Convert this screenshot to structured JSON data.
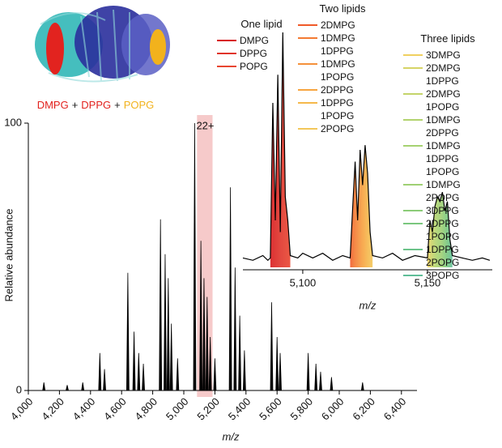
{
  "chart_data": [
    {
      "type": "spectrum",
      "caption": [
        {
          "text": "DMPG",
          "color": "#e2231f"
        },
        {
          "text": "+",
          "color": "#222222"
        },
        {
          "text": "DPPG",
          "color": "#e2231f"
        },
        {
          "text": "+",
          "color": "#222222"
        },
        {
          "text": "POPG",
          "color": "#f2b21c"
        }
      ],
      "y_label": "Relative abundance",
      "x_label": "m/z",
      "annotation": "22+",
      "x": [
        4100,
        4250,
        4350,
        4460,
        4490,
        4640,
        4680,
        4710,
        4740,
        4850,
        4880,
        4900,
        4920,
        4960,
        5070,
        5110,
        5130,
        5150,
        5170,
        5200,
        5300,
        5330,
        5360,
        5390,
        5565,
        5600,
        5620,
        5800,
        5850,
        5880,
        5950,
        6150
      ],
      "values": [
        3,
        2,
        3,
        14,
        8,
        44,
        22,
        14,
        10,
        64,
        51,
        42,
        25,
        12,
        100,
        56,
        42,
        35,
        20,
        12,
        76,
        46,
        28,
        15,
        33,
        20,
        14,
        14,
        10,
        7,
        5,
        3
      ],
      "color": "#000000",
      "highlight": {
        "xlim": [
          5085,
          5185
        ],
        "color": "#f6caca"
      },
      "xlim": [
        4000,
        6500
      ],
      "ylim": [
        0,
        100
      ],
      "xticks": [
        {
          "value": 4000,
          "label": "4,000"
        },
        {
          "value": 4200,
          "label": "4,200"
        },
        {
          "value": 4400,
          "label": "4,400"
        },
        {
          "value": 4600,
          "label": "4,600"
        },
        {
          "value": 4800,
          "label": "4,800"
        },
        {
          "value": 5000,
          "label": "5,000"
        },
        {
          "value": 5200,
          "label": "5,200"
        },
        {
          "value": 5400,
          "label": "5,400"
        },
        {
          "value": 5600,
          "label": "5,600"
        },
        {
          "value": 5800,
          "label": "5,800"
        },
        {
          "value": 6000,
          "label": "6,000"
        },
        {
          "value": 6200,
          "label": "6,200"
        },
        {
          "value": 6400,
          "label": "6,400"
        }
      ],
      "yticks": [
        0,
        100
      ]
    },
    {
      "type": "line",
      "x_label": "m/z",
      "x": [
        5076,
        5080,
        5084,
        5086,
        5087,
        5088,
        5089,
        5090,
        5091,
        5092,
        5093,
        5094,
        5095,
        5098,
        5100,
        5104,
        5108,
        5112,
        5116,
        5119,
        5120,
        5121,
        5122,
        5123,
        5124,
        5125,
        5126,
        5127,
        5128,
        5132,
        5136,
        5140,
        5145,
        5150,
        5151,
        5152,
        5153,
        5154,
        5155,
        5156,
        5157,
        5158,
        5159,
        5160,
        5164,
        5168,
        5172,
        5175
      ],
      "values": [
        4,
        3,
        5,
        3,
        4,
        70,
        20,
        82,
        15,
        100,
        30,
        20,
        5,
        4,
        6,
        4,
        6,
        3,
        5,
        4,
        25,
        45,
        20,
        50,
        35,
        52,
        40,
        15,
        5,
        4,
        6,
        3,
        5,
        4,
        20,
        15,
        26,
        30,
        28,
        32,
        24,
        28,
        12,
        5,
        4,
        3,
        4,
        3
      ],
      "color": "#000000",
      "xlim": [
        5076,
        5176
      ],
      "ylim": [
        0,
        100
      ],
      "xticks": [
        {
          "value": 5100,
          "label": "5,100"
        },
        {
          "value": 5150,
          "label": "5,150"
        }
      ],
      "legend_groups": [
        {
          "title": "One lipid",
          "entries": [
            {
              "name": "DMPG",
              "color": "#d7191c"
            },
            {
              "name": "DPPG",
              "color": "#e0342a"
            },
            {
              "name": "POPG",
              "color": "#e8452f"
            }
          ]
        },
        {
          "title": "Two lipids",
          "entries": [
            {
              "name": "2DMPG",
              "color": "#f05a28"
            },
            {
              "name": "1DMPG 1DPPG",
              "color": "#f37a32"
            },
            {
              "name": "1DMPG 1POPG",
              "color": "#f5913a"
            },
            {
              "name": "2DPPG",
              "color": "#f7a540"
            },
            {
              "name": "1DPPG 1POPG",
              "color": "#f5b84b"
            },
            {
              "name": "2POPG",
              "color": "#f3c75a"
            }
          ]
        },
        {
          "title": "Three lipids",
          "entries": [
            {
              "name": "3DMPG",
              "color": "#f0d060"
            },
            {
              "name": "2DMPG 1DPPG",
              "color": "#d6d466"
            },
            {
              "name": "2DMPG 1POPG",
              "color": "#c4d46a"
            },
            {
              "name": "1DMPG 2DPPG",
              "color": "#b2d36e"
            },
            {
              "name": "1DMPG 1DPPG 1POPG",
              "color": "#a6d271"
            },
            {
              "name": "1DMPG 2POPG",
              "color": "#9fd073"
            },
            {
              "name": "3DPPG",
              "color": "#8ccc78"
            },
            {
              "name": "2DPPG 1POPG",
              "color": "#7ac77e"
            },
            {
              "name": "1DPPG 2POPG",
              "color": "#6cc38a"
            },
            {
              "name": "3POPG",
              "color": "#5fbe98"
            }
          ]
        }
      ]
    }
  ]
}
